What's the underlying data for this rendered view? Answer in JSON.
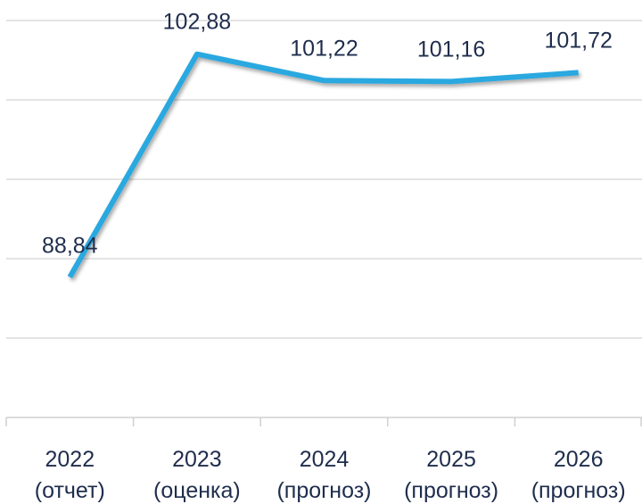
{
  "chart_data": {
    "type": "line",
    "categories": [
      [
        "2022",
        "(отчет)"
      ],
      [
        "2023",
        "(оценка)"
      ],
      [
        "2024",
        "(прогноз)"
      ],
      [
        "2025",
        "(прогноз)"
      ],
      [
        "2026",
        "(прогноз)"
      ]
    ],
    "series": [
      {
        "color": "#29a8e0",
        "values": [
          88.84,
          102.88,
          101.22,
          101.16,
          101.72
        ],
        "value_labels": [
          "88,84",
          "102,88",
          "101,22",
          "101,16",
          "101,72"
        ]
      }
    ],
    "ylim": [
      80,
      105
    ],
    "yticks": [
      80,
      85,
      90,
      95,
      100,
      105
    ],
    "grid": true
  }
}
